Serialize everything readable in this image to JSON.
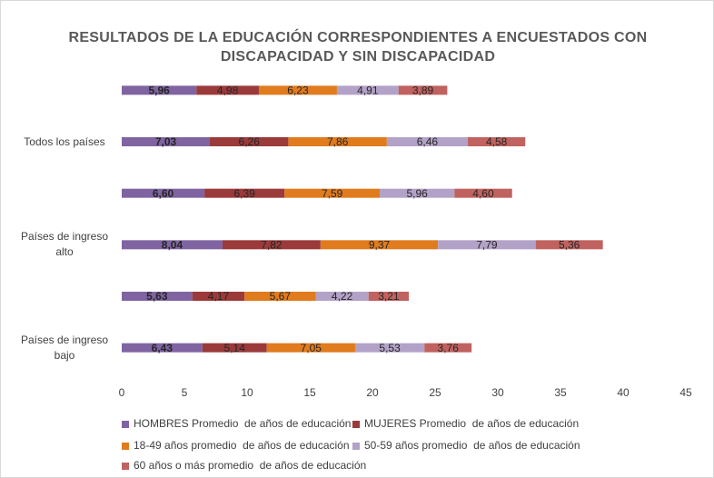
{
  "chart_data": {
    "type": "stacked-bar-horizontal",
    "title": "RESULTADOS DE LA EDUCACIÓN CORRESPONDIENTES A ENCUESTADOS CON DISCAPACIDAD Y SIN DISCAPACIDAD",
    "categories": [
      null,
      "Todos los países",
      null,
      "Países de ingreso alto",
      null,
      "Países de ingreso bajo"
    ],
    "series": [
      {
        "name": "HOMBRES Promedio  de años de educación",
        "color": "#8064a2",
        "values": [
          5.96,
          7.03,
          6.6,
          8.04,
          5.63,
          6.43
        ],
        "value_labels": [
          "5,96",
          "7,03",
          "6,60",
          "8,04",
          "5,63",
          "6,43"
        ]
      },
      {
        "name": "MUJERES Promedio  de años de educación",
        "color": "#9b3a3a",
        "values": [
          4.98,
          6.26,
          6.39,
          7.82,
          4.17,
          5.14
        ],
        "value_labels": [
          "4,98",
          "6,26",
          "6,39",
          "7,82",
          "4,17",
          "5,14"
        ]
      },
      {
        "name": "18-49 años promedio  de años de educación",
        "color": "#e07b1e",
        "values": [
          6.23,
          7.86,
          7.59,
          9.37,
          5.67,
          7.05
        ],
        "value_labels": [
          "6,23",
          "7,86",
          "7,59",
          "9,37",
          "5,67",
          "7,05"
        ]
      },
      {
        "name": "50-59 años promedio  de años de educación",
        "color": "#b3a2c7",
        "values": [
          4.91,
          6.46,
          5.96,
          7.79,
          4.22,
          5.53
        ],
        "value_labels": [
          "4,91",
          "6,46",
          "5,96",
          "7,79",
          "4,22",
          "5,53"
        ]
      },
      {
        "name": "60 años o más promedio  de años de educación",
        "color": "#c0625f",
        "values": [
          3.89,
          4.58,
          4.6,
          5.36,
          3.21,
          3.76
        ],
        "value_labels": [
          "3,89",
          "4,58",
          "4,60",
          "5,36",
          "3,21",
          "3,76"
        ]
      }
    ],
    "xlim": [
      0,
      45
    ],
    "xticks": [
      0,
      5,
      10,
      15,
      20,
      25,
      30,
      35,
      40,
      45
    ],
    "grid": false,
    "legend": "bottom"
  }
}
